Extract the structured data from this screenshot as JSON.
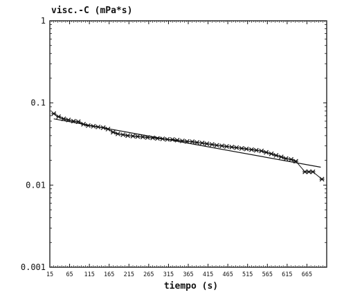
{
  "chart_data": {
    "type": "scatter",
    "title": "",
    "ylabel": "visc.-C (mPa*s)",
    "xlabel": "tiempo (s)",
    "y_scale": "log",
    "ylim": [
      0.001,
      1
    ],
    "xlim": [
      15,
      715
    ],
    "yticks": [
      {
        "value": 1,
        "label": "1"
      },
      {
        "value": 0.1,
        "label": "0.1"
      },
      {
        "value": 0.01,
        "label": "0.01"
      },
      {
        "value": 0.001,
        "label": "0.001"
      }
    ],
    "xticks": [
      {
        "value": 15,
        "label": "15"
      },
      {
        "value": 65,
        "label": "65"
      },
      {
        "value": 115,
        "label": "115"
      },
      {
        "value": 165,
        "label": "165"
      },
      {
        "value": 215,
        "label": "215"
      },
      {
        "value": 265,
        "label": "265"
      },
      {
        "value": 315,
        "label": "315"
      },
      {
        "value": 365,
        "label": "365"
      },
      {
        "value": 415,
        "label": "415"
      },
      {
        "value": 465,
        "label": "465"
      },
      {
        "value": 515,
        "label": "515"
      },
      {
        "value": 565,
        "label": "565"
      },
      {
        "value": 615,
        "label": "615"
      },
      {
        "value": 665,
        "label": "665"
      }
    ],
    "grid": false,
    "legend": "none",
    "series": [
      {
        "kind": "markers",
        "marker": "asterisk",
        "color": "#111111",
        "x": [
          25,
          37,
          50,
          62,
          75,
          87,
          100,
          112,
          125,
          137,
          150,
          162,
          175,
          187,
          200,
          212,
          225,
          237,
          250,
          262,
          275,
          287,
          300,
          312,
          325,
          337,
          350,
          362,
          375,
          387,
          400,
          412,
          425,
          437,
          450,
          462,
          475,
          487,
          500,
          512,
          525,
          537,
          550,
          562,
          575,
          587,
          600,
          612,
          625,
          637,
          660,
          670,
          680,
          703
        ],
        "y": [
          0.074,
          0.068,
          0.064,
          0.062,
          0.06,
          0.059,
          0.055,
          0.053,
          0.052,
          0.051,
          0.05,
          0.048,
          0.044,
          0.042,
          0.041,
          0.04,
          0.0395,
          0.039,
          0.0385,
          0.038,
          0.0375,
          0.037,
          0.0365,
          0.036,
          0.0358,
          0.0352,
          0.0345,
          0.034,
          0.0337,
          0.033,
          0.0325,
          0.0318,
          0.0312,
          0.0305,
          0.03,
          0.0295,
          0.029,
          0.0285,
          0.028,
          0.0275,
          0.027,
          0.0265,
          0.026,
          0.025,
          0.024,
          0.023,
          0.022,
          0.021,
          0.0205,
          0.0195,
          0.0145,
          0.0145,
          0.0145,
          0.0118
        ]
      },
      {
        "kind": "line",
        "color": "#111111",
        "x": [
          25,
          700
        ],
        "y": [
          0.064,
          0.0165
        ]
      }
    ]
  }
}
